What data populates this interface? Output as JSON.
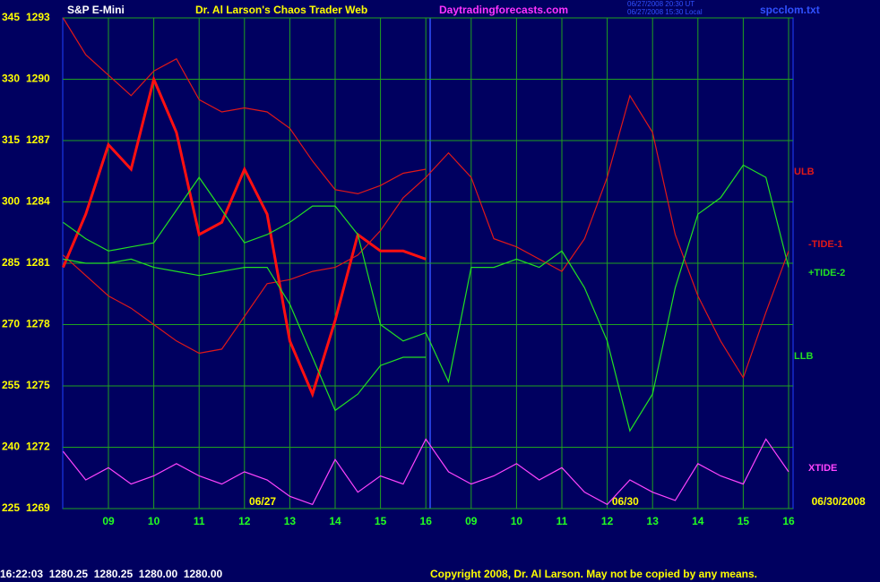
{
  "chart_data": {
    "type": "line",
    "title": "Dr. Al Larson's Chaos Trader Web",
    "subtitle": "Daytradingforecasts.com",
    "file_label": "spcclom.txt",
    "time_labels": [
      "06/27/2008 20:30 UT",
      "06/27/2008 15:30 Local"
    ],
    "status_line": "16:22:03  1280.25  1280.25  1280.00  1280.00",
    "copyright": "Copyright 2008, Dr. Al Larson. May not be copied by any means.",
    "date_labels": [
      {
        "value": 4.4,
        "label": "06/27"
      },
      {
        "value": 12.4,
        "label": "06/30"
      },
      {
        "value": 17.1,
        "label": "06/30/2008"
      }
    ],
    "x": [
      0,
      0.5,
      1,
      1.5,
      2,
      2.5,
      3,
      3.5,
      4,
      4.5,
      5,
      5.5,
      6,
      6.5,
      7,
      7.5,
      8,
      8.5,
      9,
      9.5,
      10,
      10.5,
      11,
      11.5,
      12,
      12.5,
      13,
      13.5,
      14,
      14.5,
      15,
      15.5,
      16
    ],
    "xlim": [
      0,
      16.1
    ],
    "xticks": [
      {
        "value": 1,
        "label": "09"
      },
      {
        "value": 2,
        "label": "10"
      },
      {
        "value": 3,
        "label": "11"
      },
      {
        "value": 4,
        "label": "12"
      },
      {
        "value": 5,
        "label": "13"
      },
      {
        "value": 6,
        "label": "14"
      },
      {
        "value": 7,
        "label": "15"
      },
      {
        "value": 8,
        "label": "16"
      },
      {
        "value": 9,
        "label": "09"
      },
      {
        "value": 10,
        "label": "10"
      },
      {
        "value": 11,
        "label": "11"
      },
      {
        "value": 12,
        "label": "12"
      },
      {
        "value": 13,
        "label": "13"
      },
      {
        "value": 14,
        "label": "14"
      },
      {
        "value": 15,
        "label": "15"
      },
      {
        "value": 16,
        "label": "16"
      }
    ],
    "ylim": [
      225,
      345
    ],
    "yticks": [
      345,
      330,
      315,
      300,
      285,
      270,
      255,
      240,
      225
    ],
    "y2lim": [
      1269,
      1293
    ],
    "y2ticks": [
      1293,
      1290,
      1287,
      1284,
      1281,
      1278,
      1275,
      1272,
      1269
    ],
    "grid": true,
    "series": [
      {
        "name": "S&P E-Mini",
        "color": "#ff1010",
        "values": [
          284,
          297,
          314,
          308,
          330,
          317,
          292,
          295,
          308,
          297,
          266,
          253,
          271,
          292,
          288,
          288,
          286,
          null,
          null,
          null,
          null,
          null,
          null,
          null,
          null,
          null,
          null,
          null,
          null,
          null,
          null,
          null,
          null
        ]
      },
      {
        "name": "ULB",
        "color": "#e01818",
        "values": [
          345,
          336,
          331,
          326,
          332,
          335,
          325,
          322,
          323,
          322,
          318,
          310,
          303,
          302,
          304,
          307,
          308,
          null,
          null,
          null,
          null,
          null,
          null,
          null,
          null,
          null,
          null,
          null,
          null,
          null,
          null,
          null,
          null
        ]
      },
      {
        "name": "-TIDE-1",
        "color": "#e01818",
        "values": [
          287,
          282,
          277,
          274,
          270,
          266,
          263,
          264,
          272,
          280,
          281,
          283,
          284,
          287,
          293,
          301,
          306,
          312,
          306,
          291,
          289,
          286,
          283,
          291,
          306,
          326,
          317,
          292,
          277,
          266,
          257,
          273,
          288
        ]
      },
      {
        "name": "+TIDE-2",
        "color": "#22e022",
        "values": [
          295,
          291,
          288,
          289,
          290,
          298,
          306,
          298,
          290,
          292,
          295,
          299,
          299,
          292,
          270,
          266,
          268,
          256,
          284,
          284,
          286,
          284,
          288,
          279,
          266,
          244,
          253,
          279,
          297,
          301,
          309,
          306,
          284
        ]
      },
      {
        "name": "LLB",
        "color": "#22e022",
        "values": [
          286,
          285,
          285,
          286,
          284,
          283,
          282,
          283,
          284,
          284,
          275,
          262,
          249,
          253,
          260,
          262,
          262,
          null,
          null,
          null,
          null,
          null,
          null,
          null,
          null,
          null,
          null,
          null,
          null,
          null,
          null,
          null,
          null
        ]
      },
      {
        "name": "XTIDE",
        "color": "#ff44ff",
        "values": [
          239,
          232,
          235,
          231,
          233,
          236,
          233,
          231,
          234,
          232,
          228,
          226,
          237,
          229,
          233,
          231,
          242,
          234,
          231,
          233,
          236,
          232,
          235,
          229,
          226,
          232,
          229,
          227,
          236,
          233,
          231,
          242,
          234
        ]
      }
    ]
  }
}
